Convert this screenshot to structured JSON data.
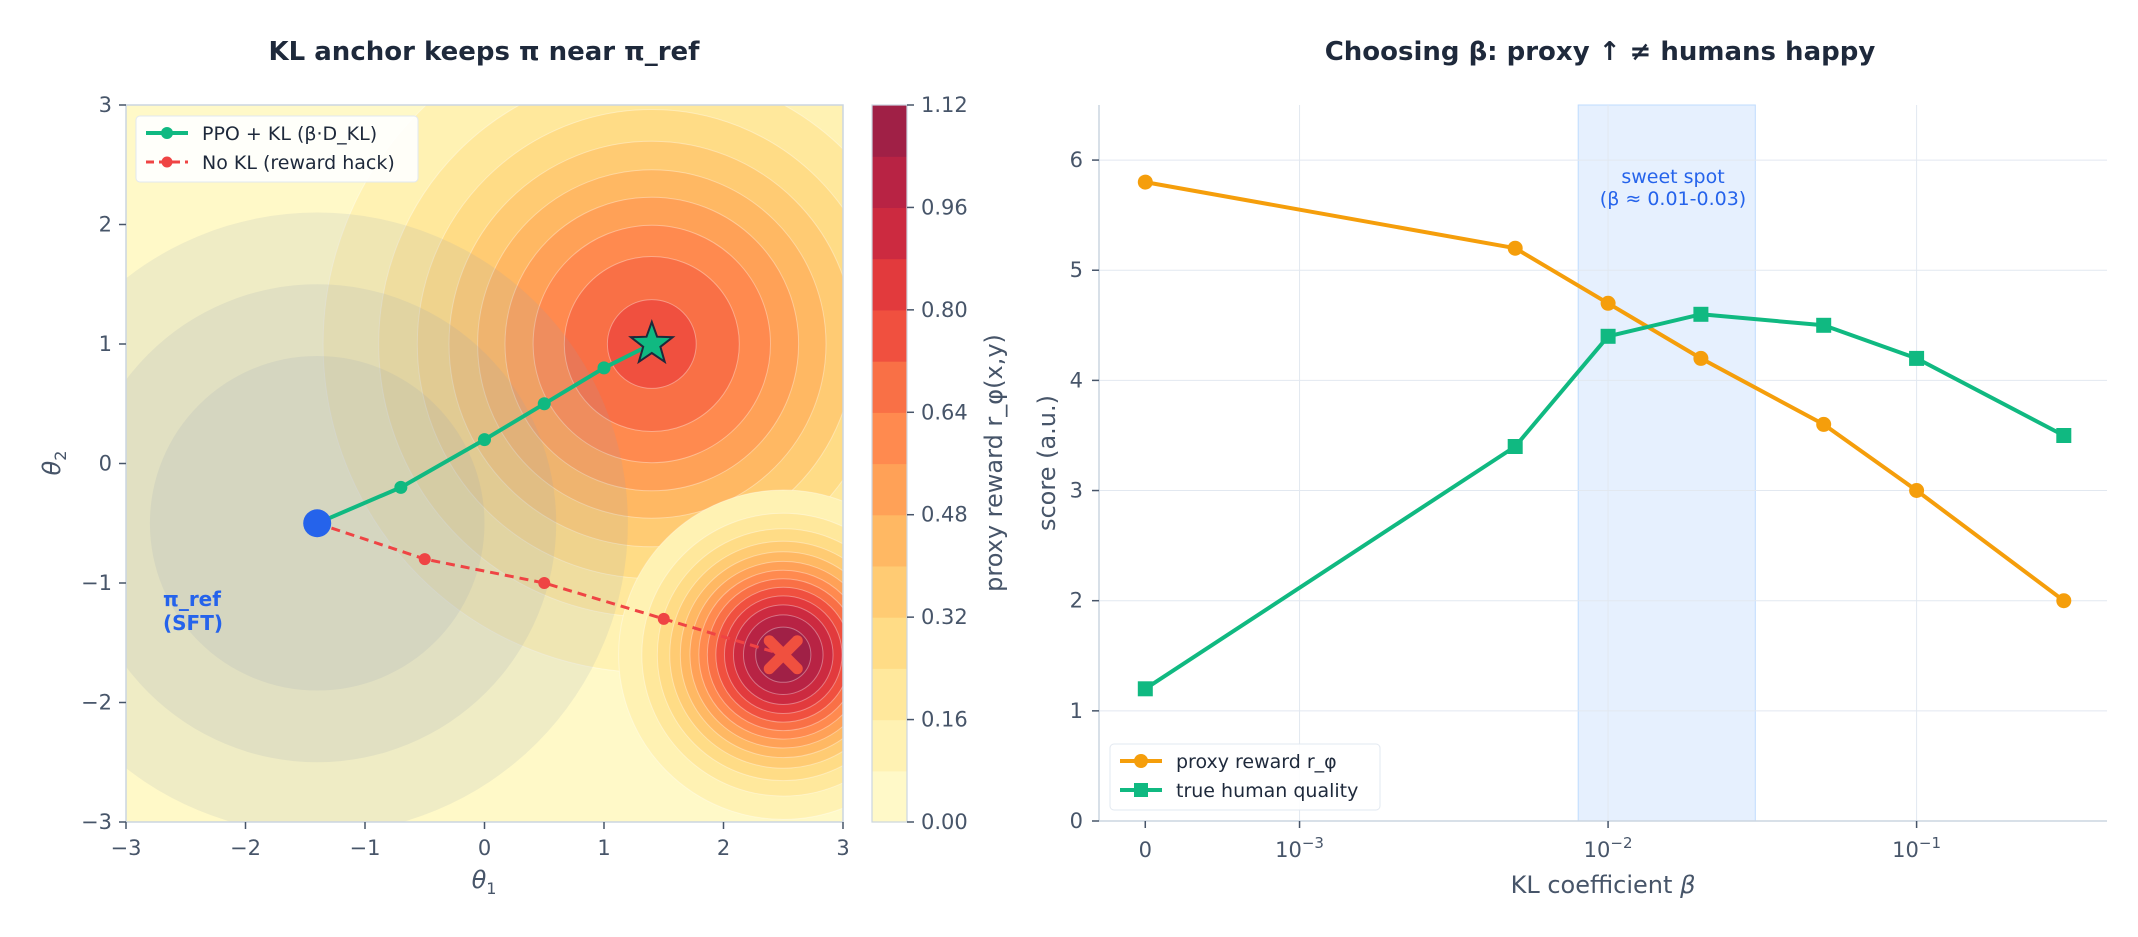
{
  "chart_data": [
    {
      "type": "contour",
      "title": "KL anchor keeps π near π_ref",
      "xlabel": "θ",
      "xlabel_sub": "1",
      "ylabel": "θ",
      "ylabel_sub": "2",
      "xlim": [
        -3,
        3
      ],
      "ylim": [
        -3,
        3
      ],
      "x_ticks": [
        -3,
        -2,
        -1,
        0,
        1,
        2,
        3
      ],
      "y_ticks": [
        -3,
        -2,
        -1,
        0,
        1,
        2,
        3
      ],
      "x_tick_labels": [
        "−3",
        "−2",
        "−1",
        "0",
        "1",
        "2",
        "3"
      ],
      "y_tick_labels": [
        "−3",
        "−2",
        "−1",
        "0",
        "1",
        "2",
        "3"
      ],
      "grid": false,
      "legend_position": "top-left",
      "colorbar": {
        "label": "proxy reward r_φ(x,y)",
        "min": 0.0,
        "max": 1.12,
        "ticks": [
          "0.00",
          "0.16",
          "0.32",
          "0.48",
          "0.64",
          "0.80",
          "0.96",
          "1.12"
        ],
        "levels": 14
      },
      "reward_peaks": [
        {
          "center": [
            1.4,
            1.0
          ],
          "height": 0.75,
          "spread": 1.3
        },
        {
          "center": [
            2.5,
            -1.6
          ],
          "height": 1.12,
          "spread": 0.6
        }
      ],
      "kl_region": {
        "center": [
          -1.4,
          -0.5
        ],
        "radii": [
          1.4,
          2.0,
          2.6
        ]
      },
      "reference_point": {
        "x": -1.4,
        "y": -0.5,
        "label_line1": "π_ref",
        "label_line2": "(SFT)"
      },
      "series": [
        {
          "name": "PPO + KL (β·D_KL)",
          "color": "#10b981",
          "style": "solid",
          "x": [
            -1.4,
            -0.7,
            0.0,
            0.5,
            1.0,
            1.4
          ],
          "y": [
            -0.5,
            -0.2,
            0.2,
            0.5,
            0.8,
            1.0
          ],
          "end_marker": "star"
        },
        {
          "name": "No KL (reward hack)",
          "color": "#ef4444",
          "style": "dashed",
          "x": [
            -1.4,
            -0.5,
            0.5,
            1.5,
            2.5
          ],
          "y": [
            -0.5,
            -0.8,
            -1.0,
            -1.3,
            -1.6
          ],
          "end_marker": "x"
        }
      ]
    },
    {
      "type": "line",
      "title": "Choosing β: proxy ↑ ≠ humans happy",
      "xlabel": "KL coefficient ",
      "xlabel_symbol": "β",
      "ylabel": "score (a.u.)",
      "x_scale": "symlog",
      "x_tick_labels": [
        "0",
        "10",
        "10",
        "10"
      ],
      "x_tick_exponents": [
        "",
        "−3",
        "−2",
        "−1"
      ],
      "y_ticks": [
        0,
        1,
        2,
        3,
        4,
        5,
        6
      ],
      "ylim": [
        0,
        6.5
      ],
      "grid": true,
      "legend_position": "bottom-left",
      "shaded_region": {
        "x_range": [
          0.008,
          0.03
        ],
        "label_line1": "sweet spot",
        "label_line2": "(β ≈ 0.01-0.03)"
      },
      "x": [
        0,
        0.005,
        0.01,
        0.02,
        0.05,
        0.1,
        0.3
      ],
      "series": [
        {
          "name": "proxy reward r_φ",
          "color": "#f59e0b",
          "marker": "circle",
          "values": [
            5.8,
            5.2,
            4.7,
            4.2,
            3.6,
            3.0,
            2.0
          ]
        },
        {
          "name": "true human quality",
          "color": "#10b981",
          "marker": "square",
          "values": [
            1.2,
            3.4,
            4.4,
            4.6,
            4.5,
            4.2,
            3.5
          ]
        }
      ]
    }
  ]
}
